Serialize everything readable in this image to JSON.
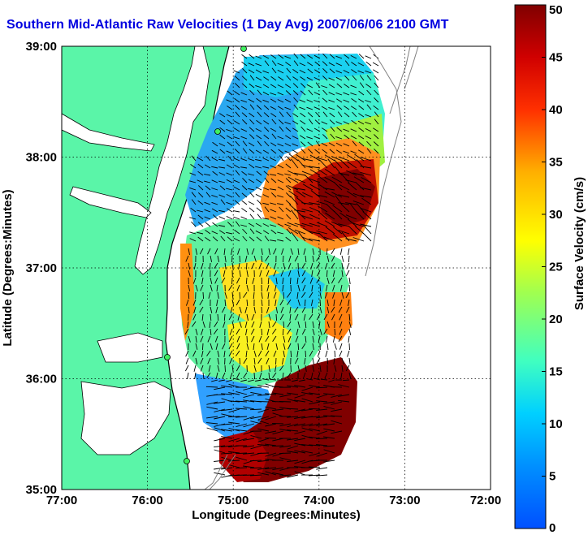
{
  "title": "Southern Mid-Atlantic Raw Velocities (1 Day Avg) 2007/06/06 2100 GMT",
  "map": {
    "xlabel": "Longitude (Degrees:Minutes)",
    "ylabel": "Latitude (Degrees:Minutes)",
    "lon_ticks": [
      "77:00",
      "76:00",
      "75:00",
      "74:00",
      "73:00",
      "72:00"
    ],
    "lat_ticks": [
      "39:00",
      "38:00",
      "37:00",
      "36:00",
      "35:00"
    ],
    "land_color": "#5af5a8",
    "grid": "dotted"
  },
  "colorbar": {
    "label": "Surface Velocity (cm/s)",
    "ticks": [
      "50",
      "45",
      "40",
      "35",
      "30",
      "25",
      "20",
      "15",
      "10",
      "5",
      "0"
    ],
    "min": 0,
    "max": 50,
    "colormap": "jet"
  }
}
